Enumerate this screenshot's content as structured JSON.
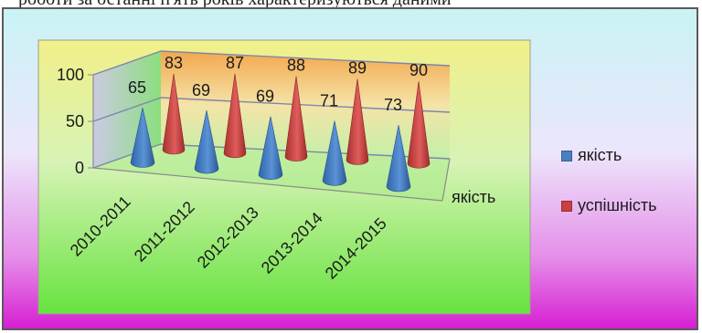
{
  "header_snippet": "роботи за останні п'ять років характеризуються даними",
  "chart_data": {
    "type": "bar",
    "style": "3d-cone",
    "categories": [
      "2010-2011",
      "2011-2012",
      "2012-2013",
      "2013-2014",
      "2014-2015"
    ],
    "depth_axis_label": "якість",
    "series": [
      {
        "name": "якість",
        "values": [
          65,
          69,
          69,
          71,
          73
        ],
        "color": "#4a7fc1"
      },
      {
        "name": "успішність",
        "values": [
          83,
          87,
          88,
          89,
          90
        ],
        "color": "#c8403f"
      }
    ],
    "y_ticks": [
      0,
      50,
      100
    ],
    "ylim": [
      0,
      100
    ],
    "legend_position": "right"
  }
}
